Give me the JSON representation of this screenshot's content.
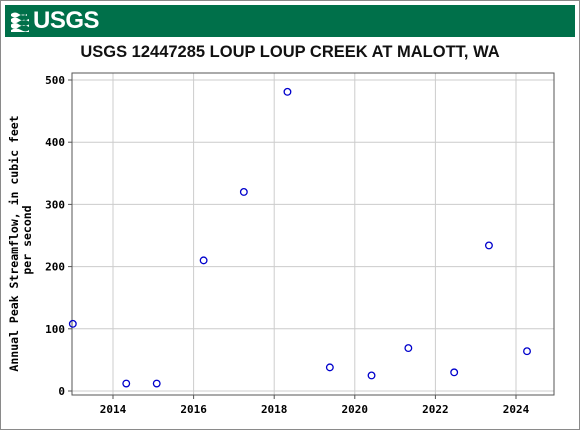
{
  "header": {
    "agency": "USGS",
    "logo_icon": "usgs-wave-icon",
    "banner_color": "#00704a"
  },
  "chart_data": {
    "type": "scatter",
    "title": "USGS 12447285 LOUP LOUP CREEK AT MALOTT, WA",
    "ylabel_lines": [
      "Annual Peak Streamflow, in cubic feet",
      "per second"
    ],
    "xlabel": "",
    "xlim": [
      "2013-01-01",
      "2025-03-01"
    ],
    "ylim": [
      0,
      510
    ],
    "x_ticks": [
      "2014",
      "2016",
      "2018",
      "2020",
      "2022",
      "2024"
    ],
    "y_ticks": [
      0,
      100,
      200,
      300,
      400,
      500
    ],
    "grid": true,
    "marker": "open-circle",
    "marker_color": "#0000cc",
    "points": [
      {
        "date": "2013-01-02",
        "value": 108
      },
      {
        "date": "2014-05-01",
        "value": 12
      },
      {
        "date": "2015-02-01",
        "value": 12
      },
      {
        "date": "2016-04-01",
        "value": 210
      },
      {
        "date": "2017-04-01",
        "value": 320
      },
      {
        "date": "2018-05-01",
        "value": 481
      },
      {
        "date": "2019-05-20",
        "value": 38
      },
      {
        "date": "2020-06-01",
        "value": 25
      },
      {
        "date": "2021-05-01",
        "value": 69
      },
      {
        "date": "2022-06-20",
        "value": 30
      },
      {
        "date": "2023-05-01",
        "value": 234
      },
      {
        "date": "2024-04-10",
        "value": 64
      }
    ]
  }
}
